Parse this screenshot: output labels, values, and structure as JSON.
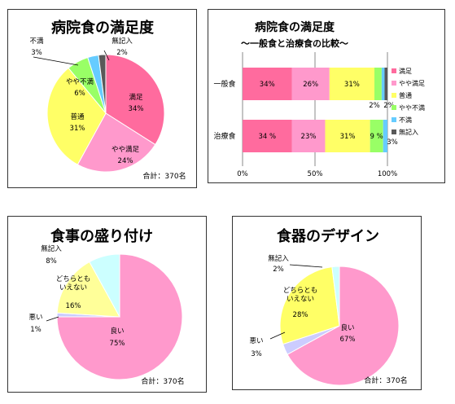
{
  "colors": {
    "pink": "#ff6b9e",
    "light_pink": "#ff99cc",
    "yellow": "#ffff66",
    "green": "#99ff66",
    "blue": "#66ccff",
    "gray": "#595959",
    "lavender": "#ccccff",
    "light_cyan": "#ccffff",
    "light_yellow": "#ffff99"
  },
  "chart_data": [
    {
      "type": "pie",
      "title": "病院食の満足度",
      "total_label": "合計：370名",
      "slices": [
        {
          "label": "満足",
          "value": 34,
          "pct": "34%",
          "color": "#ff6b9e"
        },
        {
          "label": "やや満足",
          "value": 24,
          "pct": "24%",
          "color": "#ff99cc"
        },
        {
          "label": "普通",
          "value": 31,
          "pct": "31%",
          "color": "#ffff66"
        },
        {
          "label": "やや不満",
          "value": 6,
          "pct": "6%",
          "color": "#99ff66"
        },
        {
          "label": "不満",
          "value": 3,
          "pct": "3%",
          "color": "#66ccff"
        },
        {
          "label": "無記入",
          "value": 2,
          "pct": "2%",
          "color": "#595959"
        }
      ]
    },
    {
      "type": "bar",
      "orientation": "horizontal-stacked-100",
      "title": "病院食の満足度",
      "subtitle": "～一般食と治療食の比較～",
      "categories": [
        "一般食",
        "治療食"
      ],
      "x_ticks": [
        "0%",
        "50%",
        "100%"
      ],
      "series": [
        {
          "name": "満足",
          "values": [
            34,
            34
          ],
          "labels": [
            "34%",
            "34 %"
          ],
          "color": "#ff6b9e"
        },
        {
          "name": "やや満足",
          "values": [
            26,
            23
          ],
          "labels": [
            "26%",
            "23%"
          ],
          "color": "#ff99cc"
        },
        {
          "name": "普通",
          "values": [
            31,
            31
          ],
          "labels": [
            "31%",
            "31%"
          ],
          "color": "#ffff66"
        },
        {
          "name": "やや不満",
          "values": [
            5,
            9
          ],
          "labels": [
            "5%",
            "9 %"
          ],
          "color": "#99ff66"
        },
        {
          "name": "不満",
          "values": [
            2,
            3
          ],
          "labels": [
            "2%",
            "3%"
          ],
          "color": "#66ccff"
        },
        {
          "name": "無記入",
          "values": [
            2,
            0
          ],
          "labels": [
            "2%",
            ""
          ],
          "color": "#595959"
        }
      ]
    },
    {
      "type": "pie",
      "title": "食事の盛り付け",
      "total_label": "合計：370名",
      "slices": [
        {
          "label": "良い",
          "value": 75,
          "pct": "75%",
          "color": "#ff99cc"
        },
        {
          "label": "悪い",
          "value": 1,
          "pct": "1%",
          "color": "#ccccff"
        },
        {
          "label": "どちらとも\nいえない",
          "value": 16,
          "pct": "16%",
          "color": "#ffff99"
        },
        {
          "label": "無記入",
          "value": 8,
          "pct": "8%",
          "color": "#ccffff"
        }
      ]
    },
    {
      "type": "pie",
      "title": "食器のデザイン",
      "total_label": "合計：370名",
      "slices": [
        {
          "label": "良い",
          "value": 67,
          "pct": "67%",
          "color": "#ff99cc"
        },
        {
          "label": "悪い",
          "value": 3,
          "pct": "3%",
          "color": "#ccccff"
        },
        {
          "label": "どちらとも\nいえない",
          "value": 28,
          "pct": "28%",
          "color": "#ffff66"
        },
        {
          "label": "無記入",
          "value": 2,
          "pct": "2%",
          "color": "#ccffff"
        }
      ]
    }
  ]
}
